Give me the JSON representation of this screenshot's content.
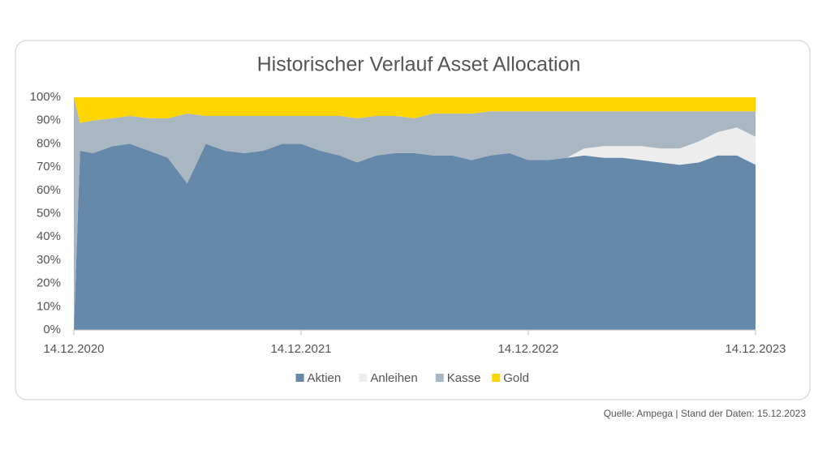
{
  "chart_data": {
    "type": "stacked_area",
    "title": "Historischer Verlauf Asset Allocation",
    "source": "Quelle: Ampega | Stand der Daten: 15.12.2023",
    "x": [
      "2020-12-14",
      "2020-12-24",
      "2021-01-14",
      "2021-02-14",
      "2021-03-14",
      "2021-04-14",
      "2021-05-14",
      "2021-06-14",
      "2021-07-14",
      "2021-08-14",
      "2021-09-14",
      "2021-10-14",
      "2021-11-14",
      "2021-12-14",
      "2022-01-14",
      "2022-02-14",
      "2022-03-14",
      "2022-04-14",
      "2022-05-14",
      "2022-06-14",
      "2022-07-14",
      "2022-08-14",
      "2022-09-14",
      "2022-10-14",
      "2022-11-14",
      "2022-12-14",
      "2023-01-14",
      "2023-02-14",
      "2023-03-14",
      "2023-04-14",
      "2023-05-14",
      "2023-06-14",
      "2023-07-14",
      "2023-08-14",
      "2023-09-14",
      "2023-10-14",
      "2023-11-14",
      "2023-12-14"
    ],
    "xlim": [
      "2020-12-14",
      "2023-12-14"
    ],
    "xticks": [
      {
        "value": "2020-12-14",
        "label": "14.12.2020"
      },
      {
        "value": "2021-12-14",
        "label": "14.12.2021"
      },
      {
        "value": "2022-12-14",
        "label": "14.12.2022"
      },
      {
        "value": "2023-12-14",
        "label": "14.12.2023"
      }
    ],
    "ylim": [
      0,
      100
    ],
    "yticks": [
      {
        "value": 0,
        "label": "0%"
      },
      {
        "value": 10,
        "label": "10%"
      },
      {
        "value": 20,
        "label": "20%"
      },
      {
        "value": 30,
        "label": "30%"
      },
      {
        "value": 40,
        "label": "40%"
      },
      {
        "value": 50,
        "label": "50%"
      },
      {
        "value": 60,
        "label": "60%"
      },
      {
        "value": 70,
        "label": "70%"
      },
      {
        "value": 80,
        "label": "80%"
      },
      {
        "value": 90,
        "label": "90%"
      },
      {
        "value": 100,
        "label": "100%"
      }
    ],
    "series": [
      {
        "name": "Aktien",
        "color": "#6689aa",
        "values": [
          0,
          77,
          76,
          79,
          80,
          77,
          74,
          63,
          80,
          77,
          76,
          77,
          80,
          80,
          77,
          75,
          72,
          75,
          76,
          76,
          75,
          75,
          73,
          75,
          76,
          73,
          73,
          74,
          75,
          74,
          74,
          73,
          72,
          71,
          72,
          75,
          75,
          71
        ]
      },
      {
        "name": "Anleihen",
        "color": "#ededed",
        "values": [
          0,
          0,
          0,
          0,
          0,
          0,
          0,
          0,
          0,
          0,
          0,
          0,
          0,
          0,
          0,
          0,
          0,
          0,
          0,
          0,
          0,
          0,
          0,
          0,
          0,
          0,
          0,
          0,
          3,
          5,
          5,
          6,
          6,
          7,
          9,
          10,
          12,
          12
        ]
      },
      {
        "name": "Kasse",
        "color": "#a9b7c3",
        "values": [
          100,
          12,
          14,
          12,
          12,
          14,
          17,
          30,
          12,
          15,
          16,
          15,
          12,
          12,
          15,
          17,
          19,
          17,
          16,
          15,
          18,
          18,
          20,
          19,
          18,
          21,
          21,
          20,
          16,
          15,
          15,
          15,
          16,
          16,
          13,
          9,
          7,
          11
        ]
      },
      {
        "name": "Gold",
        "color": "#ffd500",
        "values": [
          0,
          11,
          10,
          9,
          8,
          9,
          9,
          7,
          8,
          8,
          8,
          8,
          8,
          8,
          8,
          8,
          9,
          8,
          8,
          9,
          7,
          7,
          7,
          6,
          6,
          6,
          6,
          6,
          6,
          6,
          6,
          6,
          6,
          6,
          6,
          6,
          6,
          6
        ]
      }
    ]
  }
}
